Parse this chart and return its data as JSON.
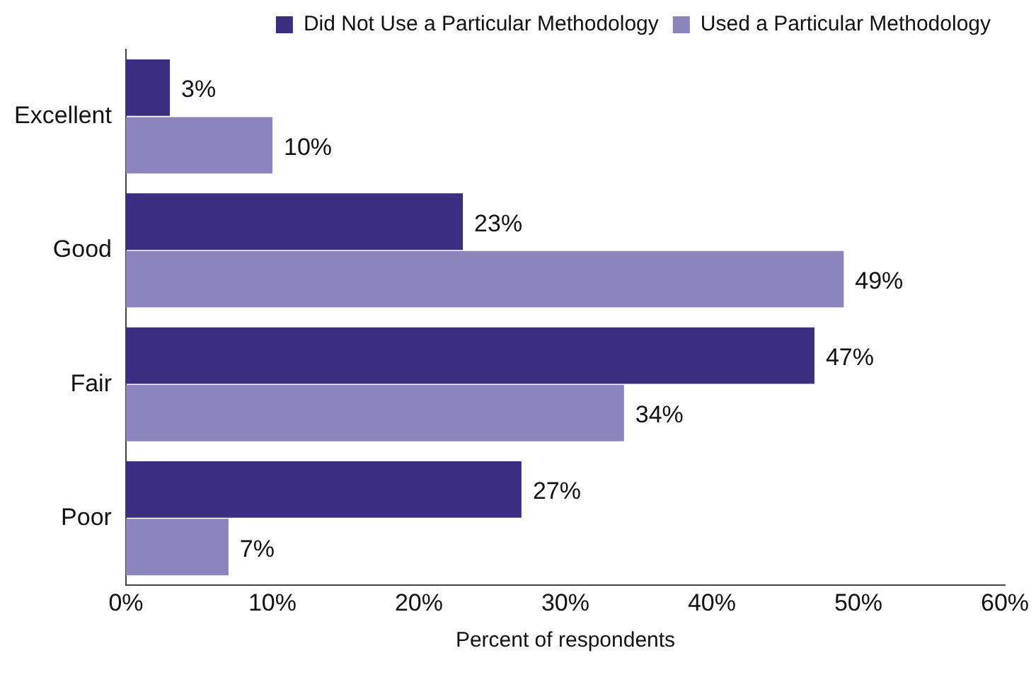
{
  "chart_data": {
    "type": "bar",
    "orientation": "horizontal",
    "xlabel": "Percent of respondents",
    "categories": [
      "Excellent",
      "Good",
      "Fair",
      "Poor"
    ],
    "series": [
      {
        "name": "Did Not Use a Particular Methodology",
        "color": "#3b2e80",
        "values": [
          3,
          23,
          47,
          27
        ],
        "value_labels": [
          "3%",
          "23%",
          "47%",
          "27%"
        ]
      },
      {
        "name": "Used a Particular Methodology",
        "color": "#8b84bd",
        "values": [
          10,
          49,
          34,
          7
        ],
        "value_labels": [
          "10%",
          "49%",
          "34%",
          "7%"
        ]
      }
    ],
    "xlim": [
      0,
      60
    ],
    "xticks": [
      {
        "value": 0,
        "label": "0%"
      },
      {
        "value": 10,
        "label": "10%"
      },
      {
        "value": 20,
        "label": "20%"
      },
      {
        "value": 30,
        "label": "30%"
      },
      {
        "value": 40,
        "label": "40%"
      },
      {
        "value": 50,
        "label": "50%"
      },
      {
        "value": 60,
        "label": "60%"
      }
    ],
    "grid": false,
    "legend": "top right"
  }
}
